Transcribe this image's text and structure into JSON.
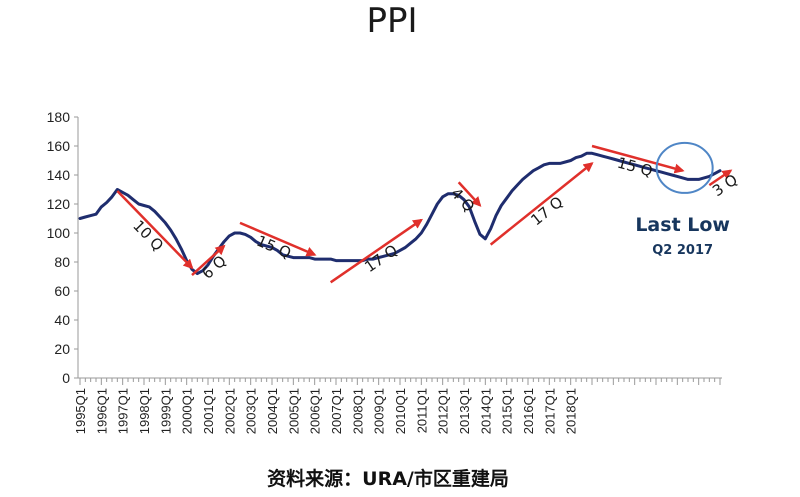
{
  "chart_data": {
    "type": "line",
    "title": "PPI",
    "xlabel": "",
    "ylabel": "",
    "ylim": [
      0,
      180
    ],
    "yticks": [
      0,
      20,
      40,
      60,
      80,
      100,
      120,
      140,
      160,
      180
    ],
    "x_tick_labels": [
      "1995Q1",
      "1996Q1",
      "1997Q1",
      "1998Q1",
      "1999Q1",
      "2000Q1",
      "2001Q1",
      "2002Q1",
      "2003Q1",
      "2004Q1",
      "2005Q1",
      "2006Q1",
      "2007Q1",
      "2008Q1",
      "2009Q1",
      "2010Q1",
      "2011Q1",
      "2012Q1",
      "2013Q1",
      "2014Q1",
      "2015Q1",
      "2016Q1",
      "2017Q1",
      "2018Q1"
    ],
    "grid": false,
    "series": [
      {
        "values": [
          110,
          111,
          112,
          113,
          118,
          121,
          125,
          130,
          128,
          126,
          123,
          120,
          119,
          118,
          115,
          111,
          107,
          102,
          96,
          89,
          81,
          75,
          72,
          74,
          78,
          84,
          89,
          94,
          98,
          100,
          100,
          99,
          97,
          94,
          92,
          91,
          90,
          88,
          85,
          84,
          83,
          83,
          83,
          83,
          82,
          82,
          82,
          82,
          81,
          81,
          81,
          81,
          81,
          81,
          82,
          82,
          83,
          84,
          85,
          86,
          88,
          90,
          93,
          96,
          100,
          106,
          113,
          120,
          125,
          127,
          127,
          126,
          123,
          118,
          108,
          99,
          96,
          103,
          112,
          119,
          124,
          129,
          133,
          137,
          140,
          143,
          145,
          147,
          148,
          148,
          148,
          149,
          150,
          152,
          153,
          155,
          155,
          154,
          153,
          152,
          151,
          150,
          149,
          148,
          147,
          146,
          145,
          144,
          143,
          142,
          141,
          140,
          139,
          138,
          137,
          137,
          137,
          138,
          139,
          141,
          143
        ],
        "color": "#1f2d6e"
      }
    ],
    "annotations": [
      {
        "text": "10 Q",
        "from_quarter": 7,
        "to_quarter": 21,
        "from_value": 129,
        "to_value": 76
      },
      {
        "text": "6 Q",
        "from_quarter": 21,
        "to_quarter": 27,
        "from_value": 71,
        "to_value": 91
      },
      {
        "text": "15 Q",
        "from_quarter": 30,
        "to_quarter": 44,
        "from_value": 107,
        "to_value": 85
      },
      {
        "text": "17 Q",
        "from_quarter": 47,
        "to_quarter": 64,
        "from_value": 66,
        "to_value": 109
      },
      {
        "text": "4 Q",
        "from_quarter": 71,
        "to_quarter": 75,
        "from_value": 135,
        "to_value": 119
      },
      {
        "text": "17 Q",
        "from_quarter": 77,
        "to_quarter": 96,
        "from_value": 92,
        "to_value": 148
      },
      {
        "text": "15 Q",
        "from_quarter": 96,
        "to_quarter": 113,
        "from_value": 160,
        "to_value": 143
      },
      {
        "text": "3 Q",
        "from_quarter": 118,
        "to_quarter": 122,
        "from_value": 133,
        "to_value": 143
      }
    ],
    "highlight": {
      "label": "Last Low",
      "sublabel": "Q2 2017",
      "quarter": 113
    }
  },
  "source": "资料来源：URA/市区重建局",
  "colors": {
    "line": "#1f2d6e",
    "arrow": "#e0302b",
    "circle": "#4f86c6",
    "axis": "#9a9a9a",
    "text": "#1a1a1a",
    "last_low_text": "#17365d"
  }
}
